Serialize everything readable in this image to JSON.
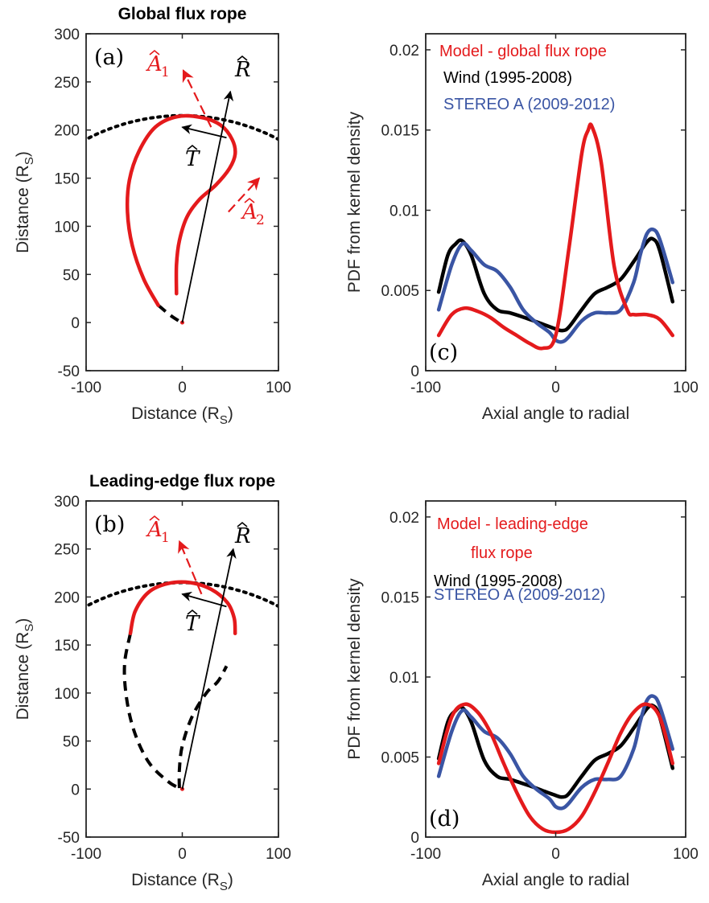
{
  "chart_data": [
    {
      "id": "a",
      "type": "line",
      "title": "Global flux rope",
      "panel_label": "(a)",
      "xlabel": "Distance (R",
      "xlabel_sub": "S",
      "ylabel": "Distance (R",
      "ylabel_sub": "S",
      "xlabel_close": ")",
      "ylabel_close": ")",
      "xlim": [
        -100,
        100
      ],
      "ylim": [
        -50,
        300
      ],
      "xticks": [
        "-100",
        "0",
        "100"
      ],
      "yticks": [
        "-50",
        "0",
        "50",
        "100",
        "150",
        "200",
        "250",
        "300"
      ],
      "xtick_values": [
        -100,
        0,
        100
      ],
      "ytick_values": [
        -50,
        0,
        50,
        100,
        150,
        200,
        250,
        300
      ],
      "arc_radius": 215,
      "rope_color": "#e41a1c",
      "rope_solid": [
        [
          -25,
          18
        ],
        [
          -40,
          45
        ],
        [
          -52,
          80
        ],
        [
          -57,
          115
        ],
        [
          -55,
          148
        ],
        [
          -45,
          178
        ],
        [
          -28,
          203
        ],
        [
          -5,
          214
        ],
        [
          20,
          213
        ],
        [
          40,
          205
        ],
        [
          52,
          190
        ],
        [
          55,
          175
        ],
        [
          49,
          160
        ],
        [
          35,
          143
        ],
        [
          18,
          128
        ],
        [
          5,
          110
        ],
        [
          -3,
          85
        ],
        [
          -6,
          60
        ],
        [
          -6,
          30
        ]
      ],
      "rope_dashed": [
        [
          -25,
          18
        ],
        [
          -13,
          8
        ],
        [
          -4,
          2
        ]
      ],
      "vectors": [
        {
          "name": "R",
          "label": "R",
          "sub": "",
          "color": "#000000",
          "x0": 0,
          "y0": 0,
          "x1": 50,
          "y1": 240,
          "dashed": false
        },
        {
          "name": "T",
          "label": "T",
          "sub": "",
          "color": "#000000",
          "x0": 46,
          "y0": 192,
          "x1": 0,
          "y1": 203,
          "dashed": false
        },
        {
          "name": "A1",
          "label": "A",
          "sub": "1",
          "color": "#e41a1c",
          "x0": 30,
          "y0": 203,
          "x1": 1,
          "y1": 262,
          "dashed": true
        },
        {
          "name": "A2",
          "label": "A",
          "sub": "2",
          "color": "#e41a1c",
          "x0": 48,
          "y0": 115,
          "x1": 80,
          "y1": 150,
          "dashed": true
        }
      ]
    },
    {
      "id": "b",
      "type": "line",
      "title": "Leading-edge flux rope",
      "panel_label": "(b)",
      "xlabel": "Distance (R",
      "xlabel_sub": "S",
      "ylabel": "Distance (R",
      "ylabel_sub": "S",
      "xlabel_close": ")",
      "ylabel_close": ")",
      "xlim": [
        -100,
        100
      ],
      "ylim": [
        -50,
        300
      ],
      "xticks": [
        "-100",
        "0",
        "100"
      ],
      "yticks": [
        "-50",
        "0",
        "50",
        "100",
        "150",
        "200",
        "250",
        "300"
      ],
      "xtick_values": [
        -100,
        0,
        100
      ],
      "ytick_values": [
        -50,
        0,
        50,
        100,
        150,
        200,
        250,
        300
      ],
      "arc_radius": 215,
      "rope_color": "#e41a1c",
      "rope_solid": [
        [
          -54,
          162
        ],
        [
          -49,
          185
        ],
        [
          -35,
          205
        ],
        [
          -15,
          214
        ],
        [
          8,
          215
        ],
        [
          30,
          208
        ],
        [
          47,
          194
        ],
        [
          54,
          178
        ],
        [
          55,
          162
        ]
      ],
      "rope_dashed": [
        [
          -54,
          162
        ],
        [
          -60,
          130
        ],
        [
          -58,
          95
        ],
        [
          -50,
          60
        ],
        [
          -35,
          28
        ],
        [
          -15,
          8
        ],
        [
          -3,
          1
        ]
      ],
      "rope_dashed2": [
        [
          -3,
          1
        ],
        [
          -3,
          20
        ],
        [
          0,
          45
        ],
        [
          10,
          75
        ],
        [
          25,
          100
        ],
        [
          37,
          112
        ],
        [
          46,
          128
        ]
      ],
      "vectors": [
        {
          "name": "R",
          "label": "R",
          "sub": "",
          "color": "#000000",
          "x0": 0,
          "y0": 0,
          "x1": 53,
          "y1": 250,
          "dashed": false
        },
        {
          "name": "T",
          "label": "T",
          "sub": "",
          "color": "#000000",
          "x0": 46,
          "y0": 190,
          "x1": 0,
          "y1": 203,
          "dashed": false
        },
        {
          "name": "A1",
          "label": "A",
          "sub": "1",
          "color": "#e41a1c",
          "x0": 20,
          "y0": 203,
          "x1": -3,
          "y1": 258,
          "dashed": true
        }
      ]
    },
    {
      "id": "c",
      "type": "line",
      "panel_label": "(c)",
      "xlabel": "Axial angle to radial",
      "ylabel": "PDF from kernel density",
      "xlim": [
        -100,
        100
      ],
      "ylim": [
        0,
        0.021
      ],
      "xticks": [
        "-100",
        "0",
        "100"
      ],
      "yticks": [
        "0",
        "0.005",
        "0.01",
        "0.015",
        "0.02"
      ],
      "xtick_values": [
        -100,
        0,
        100
      ],
      "ytick_values": [
        0,
        0.005,
        0.01,
        0.015,
        0.02
      ],
      "legend_position": "top-left",
      "series": [
        {
          "name": "Model - global flux rope",
          "color": "#e41a1c",
          "x": [
            -90,
            -80,
            -70,
            -60,
            -50,
            -40,
            -30,
            -20,
            -10,
            0,
            10,
            20,
            25,
            28,
            35,
            45,
            55,
            60,
            70,
            80,
            90
          ],
          "y": [
            0.0022,
            0.0035,
            0.0039,
            0.0037,
            0.0033,
            0.0027,
            0.0022,
            0.0017,
            0.0014,
            0.0022,
            0.0075,
            0.0135,
            0.015,
            0.0152,
            0.013,
            0.0065,
            0.0038,
            0.0035,
            0.0035,
            0.0032,
            0.0022
          ]
        },
        {
          "name": "Wind (1995-2008)",
          "color": "#000000",
          "x": [
            -90,
            -83,
            -77,
            -72,
            -65,
            -55,
            -45,
            -35,
            -20,
            -10,
            0,
            5,
            10,
            20,
            30,
            40,
            50,
            60,
            70,
            75,
            80,
            90
          ],
          "y": [
            0.0049,
            0.0072,
            0.0079,
            0.0081,
            0.0072,
            0.0048,
            0.0038,
            0.0036,
            0.0032,
            0.0029,
            0.0026,
            0.0025,
            0.0027,
            0.0038,
            0.0048,
            0.0052,
            0.0057,
            0.0068,
            0.008,
            0.0082,
            0.0075,
            0.0043
          ]
        },
        {
          "name": "STEREO A (2009-2012)",
          "color": "#3a55a4",
          "x": [
            -90,
            -80,
            -72,
            -65,
            -55,
            -45,
            -35,
            -25,
            -15,
            -5,
            0,
            5,
            10,
            20,
            30,
            40,
            50,
            60,
            65,
            70,
            75,
            80,
            90
          ],
          "y": [
            0.0038,
            0.0066,
            0.0079,
            0.0075,
            0.0066,
            0.0062,
            0.0052,
            0.0038,
            0.003,
            0.0024,
            0.0019,
            0.0018,
            0.0021,
            0.0031,
            0.0036,
            0.0036,
            0.0038,
            0.0055,
            0.0072,
            0.0085,
            0.0088,
            0.0082,
            0.0055
          ]
        }
      ]
    },
    {
      "id": "d",
      "type": "line",
      "panel_label": "(d)",
      "xlabel": "Axial angle to radial",
      "ylabel": "PDF from kernel density",
      "xlim": [
        -100,
        100
      ],
      "ylim": [
        0,
        0.021
      ],
      "xticks": [
        "-100",
        "0",
        "100"
      ],
      "yticks": [
        "0",
        "0.005",
        "0.01",
        "0.015",
        "0.02"
      ],
      "xtick_values": [
        -100,
        0,
        100
      ],
      "ytick_values": [
        0,
        0.005,
        0.01,
        0.015,
        0.02
      ],
      "legend_position": "top-left",
      "legend_lines": [
        {
          "text": "Model - leading-edge",
          "color": "#e41a1c"
        },
        {
          "text": "flux rope",
          "color": "#e41a1c"
        },
        {
          "text": "Wind (1995-2008)",
          "color": "#000000"
        },
        {
          "text": "STEREO A (2009-2012)",
          "color": "#3a55a4"
        }
      ],
      "series": [
        {
          "name": "Model - leading-edge flux rope",
          "color": "#e41a1c",
          "x": [
            -90,
            -80,
            -70,
            -60,
            -50,
            -40,
            -30,
            -20,
            -10,
            0,
            10,
            20,
            30,
            40,
            50,
            60,
            70,
            80,
            90
          ],
          "y": [
            0.0046,
            0.0075,
            0.0083,
            0.0078,
            0.0065,
            0.0046,
            0.0028,
            0.0013,
            0.0005,
            0.0003,
            0.0005,
            0.0013,
            0.0028,
            0.0046,
            0.0065,
            0.0078,
            0.0083,
            0.0075,
            0.0046
          ]
        },
        {
          "name": "Wind (1995-2008)",
          "color": "#000000",
          "x": [
            -90,
            -83,
            -77,
            -72,
            -65,
            -55,
            -45,
            -35,
            -20,
            -10,
            0,
            5,
            10,
            20,
            30,
            40,
            50,
            60,
            70,
            75,
            80,
            90
          ],
          "y": [
            0.0049,
            0.0072,
            0.0079,
            0.0081,
            0.0072,
            0.0048,
            0.0038,
            0.0036,
            0.0032,
            0.0029,
            0.0026,
            0.0025,
            0.0027,
            0.0038,
            0.0048,
            0.0052,
            0.0057,
            0.0068,
            0.008,
            0.0082,
            0.0075,
            0.0043
          ]
        },
        {
          "name": "STEREO A (2009-2012)",
          "color": "#3a55a4",
          "x": [
            -90,
            -80,
            -72,
            -65,
            -55,
            -45,
            -35,
            -25,
            -15,
            -5,
            0,
            5,
            10,
            20,
            30,
            40,
            50,
            60,
            65,
            70,
            75,
            80,
            90
          ],
          "y": [
            0.0038,
            0.0066,
            0.0079,
            0.0075,
            0.0066,
            0.0062,
            0.0052,
            0.0038,
            0.003,
            0.0024,
            0.0019,
            0.0018,
            0.0021,
            0.0031,
            0.0036,
            0.0036,
            0.0038,
            0.0055,
            0.0072,
            0.0085,
            0.0088,
            0.0082,
            0.0055
          ]
        }
      ]
    }
  ]
}
